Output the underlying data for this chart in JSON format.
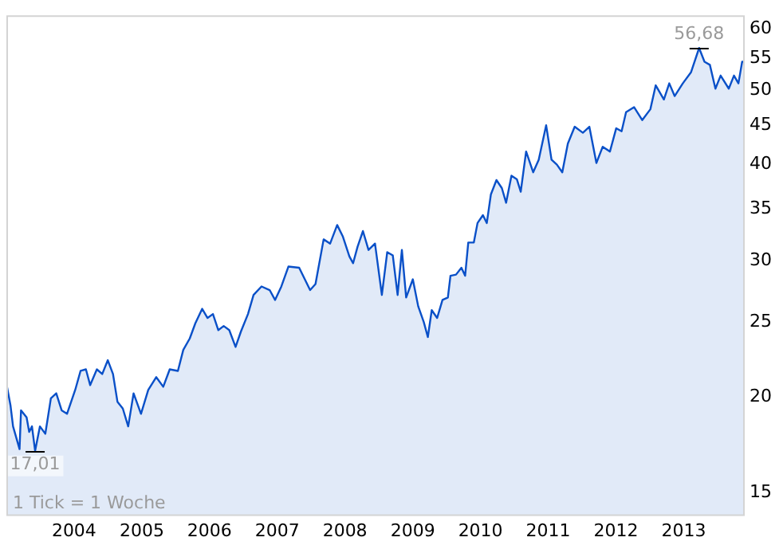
{
  "chart_data": {
    "type": "area",
    "color": "#0a50c8",
    "log": "y",
    "grid": false,
    "legend": false,
    "marker": "none",
    "x": [
      "2003-01-01",
      "2003-01-23",
      "2003-02-06",
      "2003-03-13",
      "2003-03-21",
      "2003-04-20",
      "2003-05-04",
      "2003-05-19",
      "2003-06-05",
      "2003-07-01",
      "2003-07-30",
      "2003-08-29",
      "2003-09-27",
      "2003-10-26",
      "2003-11-24",
      "2004-01-07",
      "2004-02-05",
      "2004-03-05",
      "2004-03-28",
      "2004-05-03",
      "2004-06-01",
      "2004-07-01",
      "2004-07-29",
      "2004-08-22",
      "2004-09-20",
      "2004-10-19",
      "2004-11-17",
      "2004-12-27",
      "2005-02-04",
      "2005-03-19",
      "2005-04-26",
      "2005-05-31",
      "2005-07-14",
      "2005-08-12",
      "2005-09-16",
      "2005-10-16",
      "2005-11-22",
      "2005-12-21",
      "2006-01-19",
      "2006-02-17",
      "2006-03-18",
      "2006-04-17",
      "2006-05-21",
      "2006-06-19",
      "2006-07-27",
      "2006-08-26",
      "2006-10-08",
      "2006-11-21",
      "2006-12-20",
      "2007-01-23",
      "2007-03-02",
      "2007-04-29",
      "2007-06-27",
      "2007-07-26",
      "2007-09-08",
      "2007-10-13",
      "2007-11-20",
      "2007-12-20",
      "2008-01-25",
      "2008-02-14",
      "2008-03-09",
      "2008-04-07",
      "2008-05-07",
      "2008-06-11",
      "2008-07-18",
      "2008-08-16",
      "2008-09-15",
      "2008-10-11",
      "2008-11-03",
      "2008-11-26",
      "2009-01-01",
      "2009-01-30",
      "2009-03-01",
      "2009-03-23",
      "2009-04-13",
      "2009-05-12",
      "2009-06-10",
      "2009-07-09",
      "2009-07-23",
      "2009-08-22",
      "2009-09-20",
      "2009-10-10",
      "2009-10-27",
      "2009-11-26",
      "2009-12-16",
      "2010-01-14",
      "2010-02-04",
      "2010-02-26",
      "2010-03-28",
      "2010-04-26",
      "2010-05-19",
      "2010-06-17",
      "2010-07-16",
      "2010-08-06",
      "2010-09-04",
      "2010-10-12",
      "2010-11-11",
      "2010-12-21",
      "2011-01-19",
      "2011-02-17",
      "2011-03-18",
      "2011-04-17",
      "2011-05-24",
      "2011-07-07",
      "2011-08-11",
      "2011-09-18",
      "2011-10-22",
      "2011-11-30",
      "2012-01-03",
      "2012-02-01",
      "2012-02-25",
      "2012-04-08",
      "2012-05-22",
      "2012-07-05",
      "2012-08-03",
      "2012-09-16",
      "2012-10-15",
      "2012-11-13",
      "2012-12-27",
      "2013-02-09",
      "2013-03-25",
      "2013-04-23",
      "2013-05-22",
      "2013-06-21",
      "2013-07-19",
      "2013-09-01",
      "2013-09-29",
      "2013-10-23",
      "2013-11-12",
      "2013-11-26"
    ],
    "values": [
      20.8,
      19.5,
      18.3,
      17.1,
      19.2,
      18.8,
      18.0,
      18.3,
      17.01,
      18.3,
      17.9,
      19.9,
      20.2,
      19.2,
      19.0,
      20.4,
      21.6,
      21.7,
      20.7,
      21.7,
      21.4,
      22.3,
      21.4,
      19.7,
      19.3,
      18.3,
      20.2,
      19.0,
      20.4,
      21.2,
      20.6,
      21.7,
      21.6,
      23.0,
      23.8,
      24.9,
      26.0,
      25.3,
      25.6,
      24.4,
      24.7,
      24.4,
      23.2,
      24.3,
      25.6,
      27.1,
      27.8,
      27.5,
      26.7,
      27.8,
      29.5,
      29.4,
      27.5,
      28.0,
      32.0,
      31.6,
      33.4,
      32.3,
      30.4,
      29.8,
      31.3,
      32.8,
      31.0,
      31.6,
      27.1,
      30.8,
      30.5,
      27.1,
      31.0,
      26.9,
      28.4,
      26.2,
      25.0,
      23.9,
      25.9,
      25.3,
      26.7,
      26.9,
      28.7,
      28.8,
      29.4,
      28.7,
      31.7,
      31.7,
      33.6,
      34.4,
      33.6,
      36.6,
      38.2,
      37.3,
      35.7,
      38.7,
      38.3,
      36.9,
      41.6,
      39.1,
      40.6,
      45.0,
      40.6,
      40.0,
      39.1,
      42.6,
      44.8,
      44.0,
      44.8,
      40.2,
      42.2,
      41.6,
      44.6,
      44.2,
      46.8,
      47.5,
      45.7,
      47.2,
      50.7,
      48.6,
      51.0,
      49.1,
      51.0,
      52.7,
      56.68,
      54.4,
      53.9,
      50.2,
      52.2,
      50.2,
      52.2,
      51.0,
      54.4,
      54.4
    ],
    "xlim": [
      "2003-01-01",
      "2013-11-26"
    ],
    "xticks": [
      "2004",
      "2005",
      "2006",
      "2007",
      "2008",
      "2009",
      "2010",
      "2011",
      "2012",
      "2013"
    ],
    "ylim": [
      14,
      62.5
    ],
    "yticks": [
      15,
      20,
      25,
      30,
      35,
      40,
      45,
      50,
      55,
      60
    ],
    "annotations": [
      {
        "text": "17,01",
        "x": "2003-06-05",
        "y": 17.01
      },
      {
        "text": "56,68",
        "x": "2013-03-25",
        "y": 56.68
      },
      "1 Tick = 1 Woche"
    ]
  }
}
